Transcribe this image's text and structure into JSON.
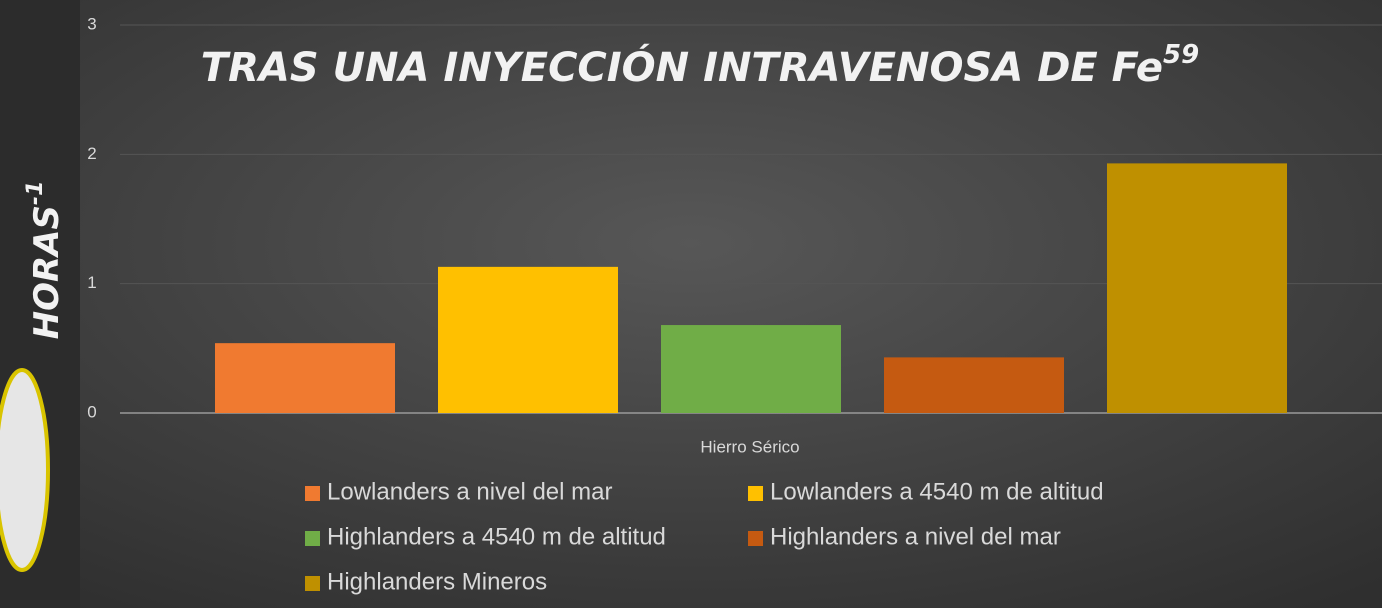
{
  "chart_data": {
    "type": "bar",
    "title": "TRAS UNA INYECCIÓN INTRAVENOSA DE Fe",
    "title_sup": "59",
    "y_label": "HORAS",
    "y_label_sup": "-1",
    "x_label": "Hierro Sérico",
    "categories": [
      "Hierro Sérico"
    ],
    "series": [
      {
        "name": "Lowlanders a nivel del mar",
        "color": "#f07a30",
        "values": [
          0.54
        ]
      },
      {
        "name": "Lowlanders a 4540 m de altitud",
        "color": "#ffc000",
        "values": [
          1.13
        ]
      },
      {
        "name": "Highlanders a 4540 m de altitud",
        "color": "#70ad47",
        "values": [
          0.68
        ]
      },
      {
        "name": "Highlanders a nivel del mar",
        "color": "#c55a11",
        "values": [
          0.43
        ]
      },
      {
        "name": "Highlanders Mineros",
        "color": "#bf9000",
        "values": [
          1.93
        ]
      }
    ],
    "ylim": [
      0,
      3
    ],
    "yticks": [
      0,
      1,
      2,
      3
    ],
    "grid": true,
    "legend": "bottom"
  }
}
